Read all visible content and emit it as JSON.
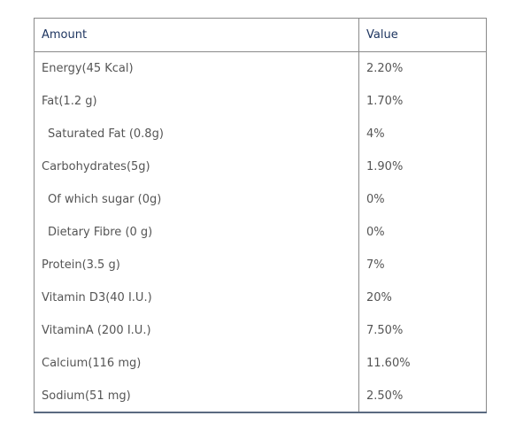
{
  "table": {
    "headers": {
      "amount": "Amount",
      "value": "Value"
    },
    "rows": [
      {
        "amount": "Energy(45 Kcal)",
        "value": "2.20%"
      },
      {
        "amount": "Fat(1.2 g)",
        "value": "1.70%"
      },
      {
        "amount": "Saturated Fat (0.8g)",
        "value": "4%"
      },
      {
        "amount": "Carbohydrates(5g)",
        "value": "1.90%"
      },
      {
        "amount": "Of which sugar (0g)",
        "value": "0%"
      },
      {
        "amount": "Dietary Fibre (0 g)",
        "value": "0%"
      },
      {
        "amount": "Protein(3.5 g)",
        "value": "7%"
      },
      {
        "amount": "Vitamin D3(40 I.U.)",
        "value": "20%"
      },
      {
        "amount": "VitaminA (200 I.U.)",
        "value": "7.50%"
      },
      {
        "amount": "Calcium(116 mg)",
        "value": "11.60%"
      },
      {
        "amount": "Sodium(51 mg)",
        "value": "2.50%"
      }
    ]
  },
  "colors": {
    "header_text": "#1e3560",
    "body_text": "#555555",
    "border": "#8a8a8a",
    "bottom_border": "#5a6a80"
  }
}
